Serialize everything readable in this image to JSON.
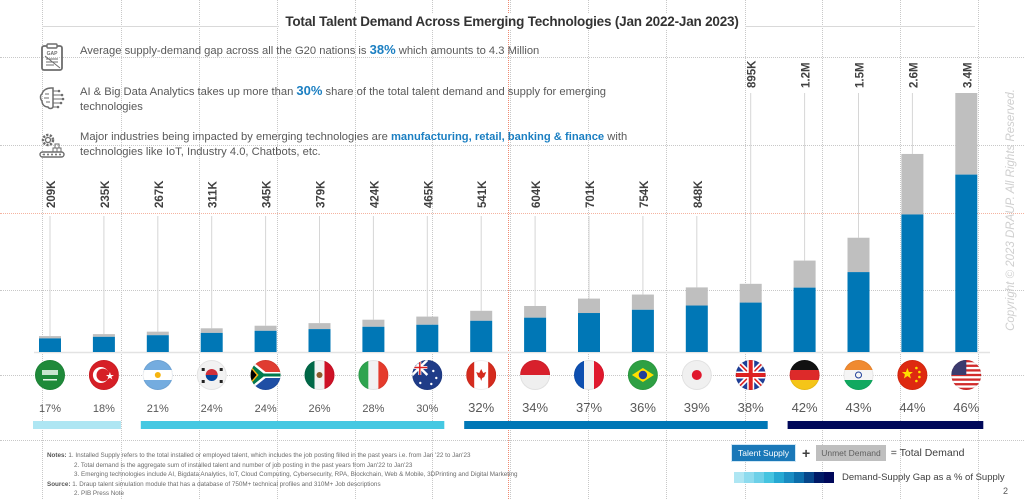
{
  "header": {
    "title": "Total Talent Demand Across Emerging Technologies (Jan 2022-Jan 2023)"
  },
  "insights": [
    {
      "icon": "gap-clipboard-icon",
      "parts": [
        {
          "t": "Average supply-demand gap across all the G20 nations is ",
          "s": "normal"
        },
        {
          "t": "38%",
          "s": "hl-big"
        },
        {
          "t": " which amounts to 4.3 Million",
          "s": "normal"
        }
      ]
    },
    {
      "icon": "ai-brain-icon",
      "parts": [
        {
          "t": "AI & Big Data Analytics takes up more than ",
          "s": "normal"
        },
        {
          "t": "30%",
          "s": "hl-big"
        },
        {
          "t": " share of the total talent demand and supply for emerging technologies",
          "s": "normal"
        }
      ]
    },
    {
      "icon": "industry-gear-conveyor-icon",
      "parts": [
        {
          "t": "Major industries being impacted by emerging technologies are ",
          "s": "normal"
        },
        {
          "t": "manufacturing, retail, banking & finance",
          "s": "hl"
        },
        {
          "t": " with technologies like IoT, Industry 4.0, Chatbots, etc.",
          "s": "normal"
        }
      ]
    }
  ],
  "colors": {
    "supply": "#0077b6",
    "unmet": "#bfbfbf",
    "gap_bands": [
      "#aee6f3",
      "#45c8e2",
      "#0077b6",
      "#00085a"
    ],
    "gradient": [
      "#aee6f3",
      "#8ddbee",
      "#6dd0e8",
      "#45c4e0",
      "#26a9d3",
      "#1a8cc2",
      "#0d6eab",
      "#07468a",
      "#001a66",
      "#00085a"
    ]
  },
  "chart_data": {
    "type": "bar",
    "subtype": "stacked",
    "title": "Total Talent Demand Across Emerging Technologies (Jan 2022-Jan 2023)",
    "categories": [
      "Saudi Arabia",
      "Turkey",
      "Argentina",
      "South Korea",
      "South Africa",
      "Mexico",
      "Italy",
      "Australia",
      "Canada",
      "Indonesia",
      "France",
      "Brazil",
      "Japan",
      "United Kingdom",
      "Germany",
      "India",
      "China",
      "United States"
    ],
    "flag_icons": [
      "flag-saudi-arabia-icon",
      "flag-turkey-icon",
      "flag-argentina-icon",
      "flag-south-korea-icon",
      "flag-south-africa-icon",
      "flag-mexico-icon",
      "flag-italy-icon",
      "flag-australia-icon",
      "flag-canada-icon",
      "flag-indonesia-icon",
      "flag-france-icon",
      "flag-brazil-icon",
      "flag-japan-icon",
      "flag-uk-icon",
      "flag-germany-icon",
      "flag-india-icon",
      "flag-china-icon",
      "flag-usa-icon"
    ],
    "total_labels": [
      "209K",
      "235K",
      "267K",
      "311K",
      "345K",
      "379K",
      "424K",
      "465K",
      "541K",
      "604K",
      "701K",
      "754K",
      "848K",
      "895K",
      "1.2M",
      "1.5M",
      "2.6M",
      "3.4M"
    ],
    "total_demand": [
      209000,
      235000,
      267000,
      311000,
      345000,
      379000,
      424000,
      465000,
      541000,
      604000,
      701000,
      754000,
      848000,
      895000,
      1200000,
      1500000,
      2600000,
      3400000
    ],
    "gap_pct_labels": [
      "17%",
      "18%",
      "21%",
      "24%",
      "24%",
      "26%",
      "28%",
      "30%",
      "32%",
      "34%",
      "37%",
      "36%",
      "39%",
      "38%",
      "42%",
      "43%",
      "44%",
      "46%"
    ],
    "gap_pct": [
      17,
      18,
      21,
      24,
      24,
      26,
      28,
      30,
      32,
      34,
      37,
      36,
      39,
      38,
      42,
      43,
      44,
      46
    ],
    "series": [
      {
        "name": "Talent Supply",
        "values": [
          178632,
          199153,
          220661,
          250806,
          278226,
          300794,
          331250,
          357692,
          409848,
          450746,
          511679,
          554412,
          610072,
          648551,
          845070,
          1048951,
          1805556,
          2328767
        ]
      },
      {
        "name": "Unmet Demand",
        "values": [
          30368,
          35847,
          46339,
          60194,
          66774,
          78206,
          92750,
          107308,
          131152,
          153254,
          189321,
          199588,
          237928,
          246449,
          354930,
          451049,
          794444,
          1071233
        ]
      }
    ],
    "gap_bands": [
      {
        "from": 0,
        "to": 1,
        "level": 0
      },
      {
        "from": 2,
        "to": 7,
        "level": 1
      },
      {
        "from": 8,
        "to": 13,
        "level": 2
      },
      {
        "from": 14,
        "to": 17,
        "level": 3
      }
    ],
    "ylim": [
      0,
      3400000
    ],
    "xlabel": "",
    "ylabel": "",
    "grid": false
  },
  "legend": {
    "supply_label": "Talent Supply",
    "plus": "+",
    "unmet_label": "Unmet Demand",
    "equals_label": "= Total Demand",
    "gradient_label": "Demand-Supply Gap as a % of Supply"
  },
  "notes": {
    "notes_label": "Notes:",
    "items": [
      "1. Installed Supply refers to the total installed or employed talent, which includes  the job posting filled in the past years i.e.  from Jan '22 to Jan'23",
      "2. Total demand is the aggregate sum of installed talent and number of job posting  in the past years  from Jan'22 to Jan'23",
      "3. Emerging technologies include AI, Bigdata Analytics, IoT, Cloud Computing, Cybersecurity, RPA, Blockchain, Web & Mobile, 3DPrinting and Digital Marketing"
    ],
    "source_label": "Source:",
    "sources": [
      "1. Draup talent simulation module that has a database of 750M+ technical profiles and 310M+ Job descriptions",
      "2. PIB Press Note"
    ]
  },
  "copyright": "Copyright © 2023 DRAUP. All Rights Reserved.",
  "page_number": "2"
}
